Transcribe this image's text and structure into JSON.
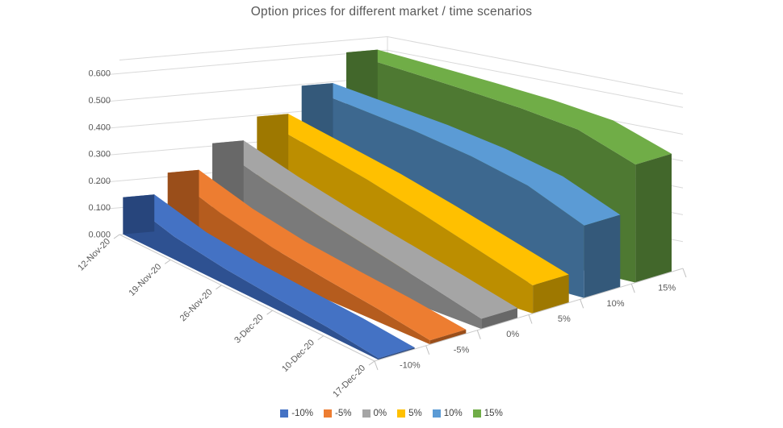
{
  "chart_data": {
    "type": "area",
    "variant": "3d-ribbon",
    "title": "Option prices for different market / time scenarios",
    "categories": [
      "12-Nov-20",
      "19-Nov-20",
      "26-Nov-20",
      "3-Dec-20",
      "10-Dec-20",
      "17-Dec-20"
    ],
    "series": [
      {
        "name": "-10%",
        "color": "#4472C4",
        "side_color": "#2E5191",
        "cap_color": "#27457C",
        "values": [
          0.138,
          0.085,
          0.058,
          0.042,
          0.028,
          0.006
        ]
      },
      {
        "name": "-5%",
        "color": "#ED7D31",
        "side_color": "#B55C1E",
        "cap_color": "#9A4E1A",
        "values": [
          0.215,
          0.15,
          0.105,
          0.075,
          0.048,
          0.015
        ]
      },
      {
        "name": "0%",
        "color": "#A5A5A5",
        "side_color": "#7A7A7A",
        "cap_color": "#686868",
        "values": [
          0.31,
          0.245,
          0.19,
          0.14,
          0.09,
          0.038
        ]
      },
      {
        "name": "5%",
        "color": "#FFC000",
        "side_color": "#BC8E00",
        "cap_color": "#9E7800",
        "values": [
          0.395,
          0.345,
          0.295,
          0.235,
          0.17,
          0.105
        ]
      },
      {
        "name": "10%",
        "color": "#5B9BD5",
        "side_color": "#3D688F",
        "cap_color": "#34597A",
        "values": [
          0.495,
          0.47,
          0.445,
          0.41,
          0.36,
          0.27
        ]
      },
      {
        "name": "15%",
        "color": "#70AD47",
        "side_color": "#4E7932",
        "cap_color": "#42672B",
        "values": [
          0.605,
          0.588,
          0.57,
          0.55,
          0.52,
          0.44
        ]
      }
    ],
    "value_axis": {
      "min": 0,
      "max": 0.65,
      "step": 0.1,
      "labels": [
        "0.000",
        "0.100",
        "0.200",
        "0.300",
        "0.400",
        "0.500",
        "0.600"
      ]
    },
    "series_axis_labels": [
      "-10%",
      "-5%",
      "0%",
      "5%",
      "10%",
      "15%"
    ],
    "legend": {
      "position": "bottom"
    },
    "grid": true,
    "colors": {
      "gridline": "#D9D9D9",
      "axis_line": "#C9C9C9",
      "tick": "#BFBFBF",
      "axis_text": "#595959",
      "legend_text": "#404040",
      "title_text": "#595959",
      "background": "#FFFFFF"
    }
  }
}
